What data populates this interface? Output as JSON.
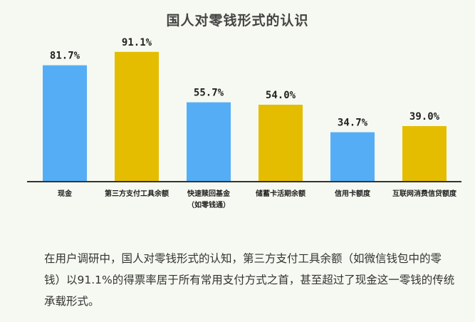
{
  "chart_data": {
    "type": "bar",
    "title": "国人对零钱形式的认识",
    "categories": [
      [
        "现金"
      ],
      [
        "第三方支付工具余额"
      ],
      [
        "快速赎回基金",
        "（如零钱通）"
      ],
      [
        "储蓄卡活期余额"
      ],
      [
        "信用卡额度"
      ],
      [
        "互联网消费信贷额度"
      ]
    ],
    "values": [
      81.7,
      91.1,
      55.7,
      54.0,
      34.7,
      39.0
    ],
    "value_labels": [
      "81.7%",
      "91.1%",
      "55.7%",
      "54.0%",
      "34.7%",
      "39.0%"
    ],
    "colors": [
      "#55aef5",
      "#e5bd00",
      "#55aef5",
      "#e5bd00",
      "#55aef5",
      "#e5bd00"
    ],
    "ylim": [
      0,
      100
    ],
    "grid": false,
    "xlabel": "",
    "ylabel": ""
  },
  "description": "在用户调研中，国人对零钱形式的认知，第三方支付工具余额（如微信钱包中的零钱）以91.1%的得票率居于所有常用支付方式之首，甚至超过了现金这一零钱的传统承载形式。"
}
